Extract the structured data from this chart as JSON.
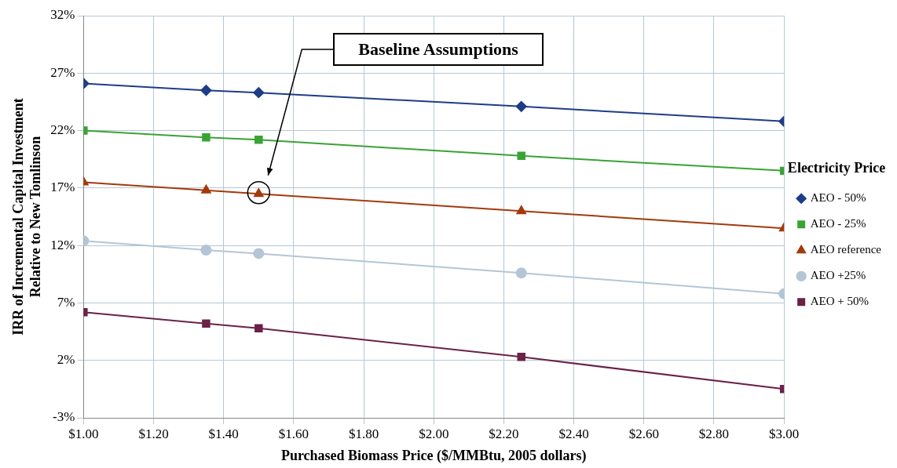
{
  "chart_data": {
    "type": "line",
    "xlabel": "Purchased Biomass Price ($/MMBtu, 2005 dollars)",
    "ylabel": "IRR of Incremental Capital Investment\nRelative to New Tomlinson",
    "legend_title": "Electricity Price",
    "legend": "right",
    "x": [
      1.0,
      1.35,
      1.5,
      2.25,
      3.0
    ],
    "series": [
      {
        "name": "AEO - 50%",
        "color": "#1f3c88",
        "marker": "diamond",
        "values": [
          26.1,
          25.5,
          25.3,
          24.1,
          22.8
        ]
      },
      {
        "name": "AEO - 25%",
        "color": "#3aa335",
        "marker": "square",
        "values": [
          22.0,
          21.4,
          21.2,
          19.8,
          18.5
        ]
      },
      {
        "name": "AEO reference",
        "color": "#a33a0c",
        "marker": "triangle",
        "values": [
          17.5,
          16.8,
          16.5,
          15.0,
          13.5
        ]
      },
      {
        "name": "AEO +25%",
        "color": "#b4c6d6",
        "marker": "circle",
        "values": [
          12.4,
          11.6,
          11.3,
          9.6,
          7.8
        ]
      },
      {
        "name": "AEO + 50%",
        "color": "#6b2148",
        "marker": "square",
        "values": [
          6.2,
          5.2,
          4.8,
          2.3,
          -0.5
        ]
      }
    ],
    "xlim": [
      1.0,
      3.0
    ],
    "xticks": [
      {
        "value": 1.0,
        "label": "$1.00"
      },
      {
        "value": 1.2,
        "label": "$1.20"
      },
      {
        "value": 1.4,
        "label": "$1.40"
      },
      {
        "value": 1.6,
        "label": "$1.60"
      },
      {
        "value": 1.8,
        "label": "$1.80"
      },
      {
        "value": 2.0,
        "label": "$2.00"
      },
      {
        "value": 2.2,
        "label": "$2.20"
      },
      {
        "value": 2.4,
        "label": "$2.40"
      },
      {
        "value": 2.6,
        "label": "$2.60"
      },
      {
        "value": 2.8,
        "label": "$2.80"
      },
      {
        "value": 3.0,
        "label": "$3.00"
      }
    ],
    "ylim": [
      -3,
      32
    ],
    "yticks": [
      {
        "value": -3,
        "label": "-3%"
      },
      {
        "value": 2,
        "label": "2%"
      },
      {
        "value": 7,
        "label": "7%"
      },
      {
        "value": 12,
        "label": "12%"
      },
      {
        "value": 17,
        "label": "17%"
      },
      {
        "value": 22,
        "label": "22%"
      },
      {
        "value": 27,
        "label": "27%"
      },
      {
        "value": 32,
        "label": "32%"
      }
    ],
    "grid": true,
    "line_style": "solid",
    "annotations": [
      "Baseline Assumptions"
    ]
  }
}
